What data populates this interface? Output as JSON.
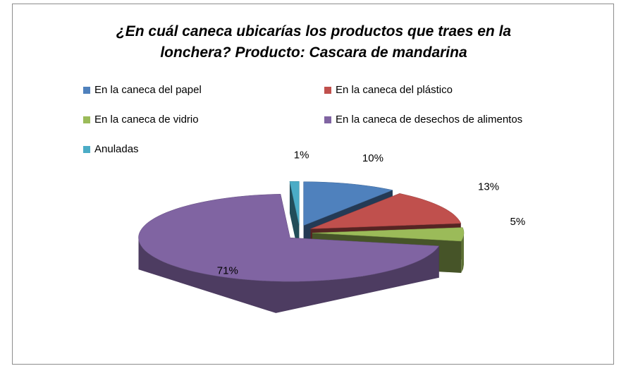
{
  "chart_data": {
    "type": "pie3d",
    "title": "¿En cuál caneca ubicarías los productos que traes en la lonchera? Producto: Cascara de mandarina",
    "categories": [
      "En la caneca del papel",
      "En la caneca del plástico",
      "En la caneca de vidrio",
      "En la caneca de desechos de alimentos",
      "Anuladas"
    ],
    "values": [
      10,
      13,
      5,
      71,
      1
    ],
    "value_labels": [
      "10%",
      "13%",
      "5%",
      "71%",
      "1%"
    ],
    "colors": [
      "#4f81bd",
      "#c0504d",
      "#9bbb59",
      "#8064a2",
      "#4bacc6"
    ],
    "legend": "top"
  }
}
